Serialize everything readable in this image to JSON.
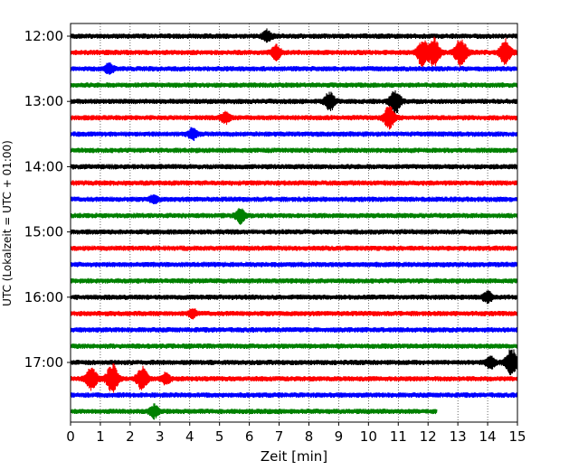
{
  "chart_data": {
    "type": "line",
    "xlabel": "Zeit  [min]",
    "ylabel": "UTC (Lokalzeit = UTC + 01:00)",
    "xlim": [
      0,
      15
    ],
    "x_ticks": [
      "0",
      "1",
      "2",
      "3",
      "4",
      "5",
      "6",
      "7",
      "8",
      "9",
      "10",
      "11",
      "12",
      "13",
      "14",
      "15"
    ],
    "y_ticks": [
      {
        "label": "12:00",
        "trace": 0
      },
      {
        "label": "13:00",
        "trace": 4
      },
      {
        "label": "14:00",
        "trace": 8
      },
      {
        "label": "15:00",
        "trace": 12
      },
      {
        "label": "16:00",
        "trace": 16
      },
      {
        "label": "17:00",
        "trace": 20
      }
    ],
    "grid": "vertical",
    "trace_interval_minutes": 15,
    "trace_colors": [
      "#000000",
      "#ff0000",
      "#0000ff",
      "#008000"
    ],
    "traces": [
      {
        "start": "12:00",
        "end_min": 15,
        "events": [
          {
            "t": 6.6,
            "amp": 0.45
          }
        ]
      },
      {
        "start": "12:15",
        "end_min": 15,
        "events": [
          {
            "t": 6.9,
            "amp": 0.55
          },
          {
            "t": 11.8,
            "amp": 1.0
          },
          {
            "t": 12.2,
            "amp": 1.1
          },
          {
            "t": 13.1,
            "amp": 1.1
          },
          {
            "t": 14.6,
            "amp": 1.0
          }
        ]
      },
      {
        "start": "12:30",
        "end_min": 15,
        "events": [
          {
            "t": 1.3,
            "amp": 0.4
          }
        ]
      },
      {
        "start": "12:45",
        "end_min": 15,
        "events": []
      },
      {
        "start": "13:00",
        "end_min": 15,
        "events": [
          {
            "t": 8.7,
            "amp": 0.7
          },
          {
            "t": 10.9,
            "amp": 0.9
          }
        ]
      },
      {
        "start": "13:15",
        "end_min": 15,
        "events": [
          {
            "t": 5.2,
            "amp": 0.45
          },
          {
            "t": 10.7,
            "amp": 0.9
          }
        ]
      },
      {
        "start": "13:30",
        "end_min": 15,
        "events": [
          {
            "t": 4.1,
            "amp": 0.45
          }
        ]
      },
      {
        "start": "13:45",
        "end_min": 15,
        "events": []
      },
      {
        "start": "14:00",
        "end_min": 15,
        "events": []
      },
      {
        "start": "14:15",
        "end_min": 15,
        "events": []
      },
      {
        "start": "14:30",
        "end_min": 15,
        "events": [
          {
            "t": 2.8,
            "amp": 0.3
          }
        ]
      },
      {
        "start": "14:45",
        "end_min": 15,
        "events": [
          {
            "t": 5.7,
            "amp": 0.55
          }
        ]
      },
      {
        "start": "15:00",
        "end_min": 15,
        "events": []
      },
      {
        "start": "15:15",
        "end_min": 15,
        "events": []
      },
      {
        "start": "15:30",
        "end_min": 15,
        "events": []
      },
      {
        "start": "15:45",
        "end_min": 15,
        "events": []
      },
      {
        "start": "16:00",
        "end_min": 15,
        "events": [
          {
            "t": 14.0,
            "amp": 0.45
          }
        ]
      },
      {
        "start": "16:15",
        "end_min": 15,
        "events": [
          {
            "t": 4.1,
            "amp": 0.3
          }
        ]
      },
      {
        "start": "16:30",
        "end_min": 15,
        "events": []
      },
      {
        "start": "16:45",
        "end_min": 15,
        "events": []
      },
      {
        "start": "17:00",
        "end_min": 15,
        "events": [
          {
            "t": 14.1,
            "amp": 0.5
          },
          {
            "t": 14.8,
            "amp": 1.1
          }
        ]
      },
      {
        "start": "17:15",
        "end_min": 15,
        "events": [
          {
            "t": 0.7,
            "amp": 0.9
          },
          {
            "t": 1.4,
            "amp": 1.1
          },
          {
            "t": 2.4,
            "amp": 0.9
          },
          {
            "t": 3.2,
            "amp": 0.4
          }
        ]
      },
      {
        "start": "17:30",
        "end_min": 15,
        "events": []
      },
      {
        "start": "17:45",
        "end_min": 12.3,
        "events": [
          {
            "t": 2.8,
            "amp": 0.5
          }
        ]
      }
    ]
  }
}
